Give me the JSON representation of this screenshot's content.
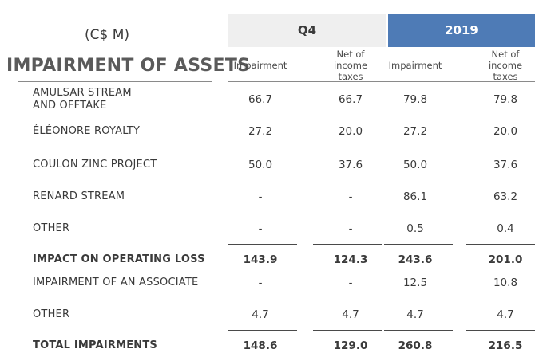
{
  "header": {
    "unit": "(C$ M)",
    "title": "IMPAIRMENT OF ASSETS",
    "q4_label": "Q4",
    "year_label": "2019",
    "sub_impairment": "Impairment",
    "sub_net_line1": "Net of",
    "sub_net_line2": "income",
    "sub_net_line3": "taxes"
  },
  "rows": [
    {
      "label_line1": "AMULSAR STREAM",
      "label_line2": "AND OFFTAKE",
      "q4_imp": "66.7",
      "q4_net": "66.7",
      "y_imp": "79.8",
      "y_net": "79.8"
    },
    {
      "label_line1": "ÉLÉONORE ROYALTY",
      "q4_imp": "27.2",
      "q4_net": "20.0",
      "y_imp": "27.2",
      "y_net": "20.0"
    },
    {
      "label_line1": "COULON ZINC PROJECT",
      "q4_imp": "50.0",
      "q4_net": "37.6",
      "y_imp": "50.0",
      "y_net": "37.6"
    },
    {
      "label_line1": "RENARD STREAM",
      "q4_imp": "-",
      "q4_net": "-",
      "y_imp": "86.1",
      "y_net": "63.2"
    },
    {
      "label_line1": "OTHER",
      "q4_imp": "-",
      "q4_net": "-",
      "y_imp": "0.5",
      "y_net": "0.4"
    },
    {
      "label_line1": "IMPACT ON OPERATING LOSS",
      "q4_imp": "143.9",
      "q4_net": "124.3",
      "y_imp": "243.6",
      "y_net": "201.0"
    },
    {
      "label_line1": "IMPAIRMENT OF AN ASSOCIATE",
      "q4_imp": "-",
      "q4_net": "-",
      "y_imp": "12.5",
      "y_net": "10.8"
    },
    {
      "label_line1": "OTHER",
      "q4_imp": "4.7",
      "q4_net": "4.7",
      "y_imp": "4.7",
      "y_net": "4.7"
    },
    {
      "label_line1": "TOTAL IMPAIRMENTS",
      "q4_imp": "148.6",
      "q4_net": "129.0",
      "y_imp": "260.8",
      "y_net": "216.5"
    }
  ]
}
